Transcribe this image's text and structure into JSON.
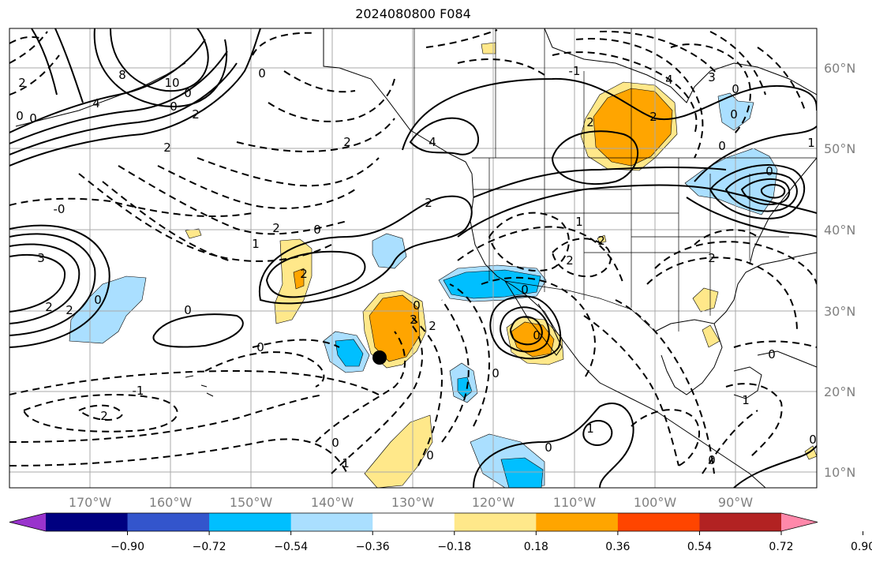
{
  "title": "2024080800 F084",
  "lon_labels": [
    "170°W",
    "160°W",
    "150°W",
    "140°W",
    "130°W",
    "120°W",
    "110°W",
    "100°W",
    "90°W"
  ],
  "lat_labels": [
    "60°N",
    "50°N",
    "40°N",
    "30°N",
    "20°N",
    "10°N"
  ],
  "colorbar": {
    "colors": [
      "#9933cc",
      "#000080",
      "#3355cc",
      "#00bfff",
      "#aadfff",
      "#ffffff",
      "#ffe88a",
      "#ffa500",
      "#ff4500",
      "#b22222",
      "#ff88aa"
    ],
    "tick_labels": [
      "−0.90",
      "−0.72",
      "−0.54",
      "−0.36",
      "−0.18",
      "0.18",
      "0.36",
      "0.54",
      "0.72",
      "0.90"
    ]
  },
  "contour_labels": [
    "2",
    "8",
    "10",
    "4",
    "0",
    "0",
    "2",
    "2",
    "0",
    "0",
    "2",
    "4",
    "4",
    "2",
    "3",
    "0",
    "0",
    "2",
    "0",
    "0",
    "-0",
    "3",
    "2",
    "0",
    "2",
    "1",
    "2",
    "0",
    "2",
    "0",
    "2",
    "0",
    "0",
    "2",
    "0",
    "2",
    "2",
    "2",
    "1",
    "2",
    "0",
    "0",
    "0",
    "0",
    "-1",
    "2",
    "1",
    "0",
    "0",
    "1",
    "1",
    "0",
    "1",
    "0",
    "-1",
    "0"
  ],
  "marker": "black-dot"
}
